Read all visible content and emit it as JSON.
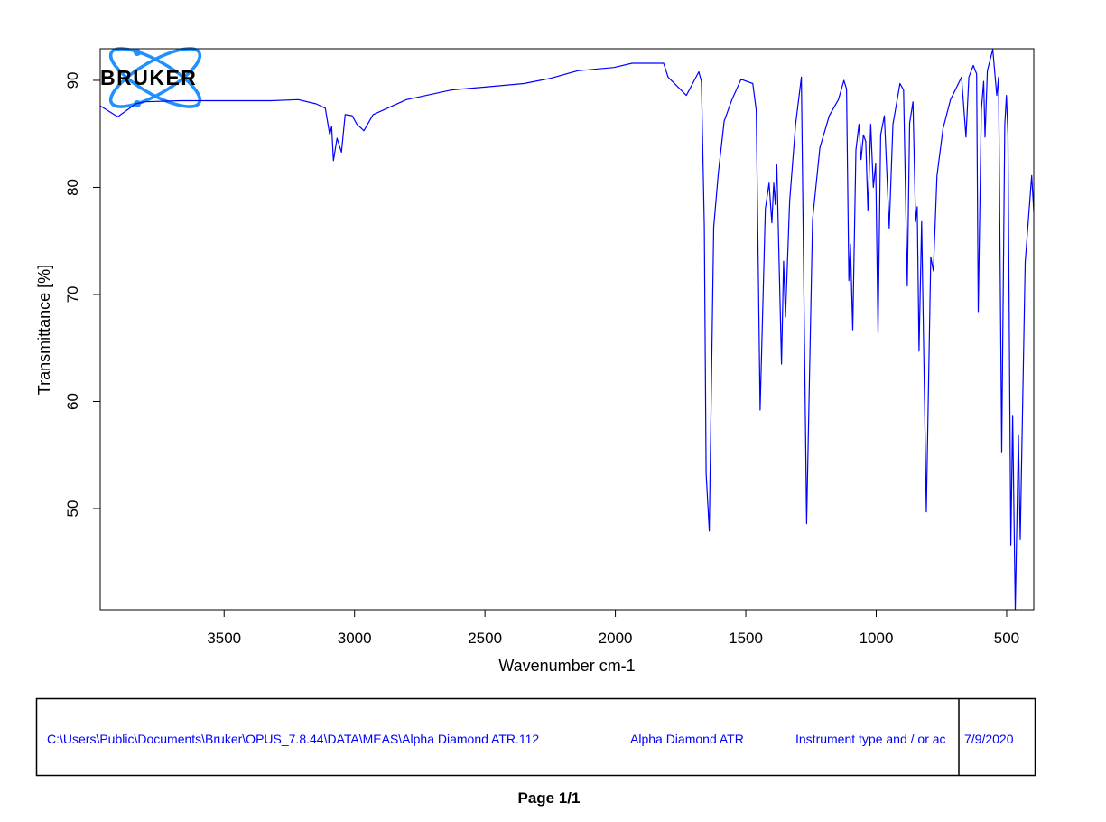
{
  "chart_data": {
    "type": "line",
    "title": "",
    "xlabel": "Wavenumber cm-1",
    "ylabel": "Transmittance [%]",
    "xlim": [
      3975,
      396
    ],
    "ylim": [
      40.55,
      92.95
    ],
    "x_reversed": true,
    "grid": false,
    "xticks": [
      3500,
      3000,
      2500,
      2000,
      1500,
      1000,
      500
    ],
    "yticks": [
      50,
      60,
      70,
      80,
      90
    ],
    "line_color": "#0000ff",
    "series": [
      {
        "points": [
          [
            3974,
            87.6
          ],
          [
            3908,
            86.6
          ],
          [
            3839,
            87.8
          ],
          [
            3804,
            88.0
          ],
          [
            3666,
            88.1
          ],
          [
            3493,
            88.1
          ],
          [
            3320,
            88.1
          ],
          [
            3216,
            88.2
          ],
          [
            3147,
            87.8
          ],
          [
            3112,
            87.4
          ],
          [
            3095,
            84.9
          ],
          [
            3088,
            85.7
          ],
          [
            3081,
            82.5
          ],
          [
            3067,
            84.6
          ],
          [
            3050,
            83.3
          ],
          [
            3036,
            86.8
          ],
          [
            3009,
            86.7
          ],
          [
            2991,
            85.9
          ],
          [
            2964,
            85.3
          ],
          [
            2929,
            86.8
          ],
          [
            2801,
            88.2
          ],
          [
            2628,
            89.1
          ],
          [
            2490,
            89.4
          ],
          [
            2351,
            89.7
          ],
          [
            2247,
            90.2
          ],
          [
            2144,
            90.9
          ],
          [
            2005,
            91.2
          ],
          [
            1936,
            91.6
          ],
          [
            1815,
            91.6
          ],
          [
            1798,
            90.3
          ],
          [
            1728,
            88.6
          ],
          [
            1680,
            90.8
          ],
          [
            1670,
            89.9
          ],
          [
            1659,
            76.3
          ],
          [
            1652,
            53.3
          ],
          [
            1640,
            47.9
          ],
          [
            1623,
            76.3
          ],
          [
            1605,
            81.4
          ],
          [
            1583,
            86.2
          ],
          [
            1553,
            88.2
          ],
          [
            1518,
            90.1
          ],
          [
            1473,
            89.7
          ],
          [
            1460,
            87.2
          ],
          [
            1445,
            59.2
          ],
          [
            1425,
            78.0
          ],
          [
            1411,
            80.4
          ],
          [
            1400,
            76.7
          ],
          [
            1393,
            80.4
          ],
          [
            1387,
            78.4
          ],
          [
            1381,
            82.1
          ],
          [
            1363,
            63.5
          ],
          [
            1355,
            73.1
          ],
          [
            1348,
            67.9
          ],
          [
            1332,
            78.7
          ],
          [
            1309,
            85.9
          ],
          [
            1287,
            90.3
          ],
          [
            1267,
            48.6
          ],
          [
            1244,
            77.0
          ],
          [
            1216,
            83.7
          ],
          [
            1180,
            86.7
          ],
          [
            1145,
            88.2
          ],
          [
            1124,
            90.0
          ],
          [
            1114,
            89.2
          ],
          [
            1105,
            71.3
          ],
          [
            1099,
            74.7
          ],
          [
            1090,
            66.7
          ],
          [
            1078,
            83.5
          ],
          [
            1066,
            85.9
          ],
          [
            1058,
            82.6
          ],
          [
            1049,
            84.9
          ],
          [
            1040,
            84.3
          ],
          [
            1032,
            77.8
          ],
          [
            1021,
            85.9
          ],
          [
            1011,
            80.0
          ],
          [
            1002,
            82.2
          ],
          [
            993,
            66.4
          ],
          [
            983,
            84.9
          ],
          [
            969,
            86.7
          ],
          [
            950,
            76.2
          ],
          [
            936,
            85.9
          ],
          [
            909,
            89.7
          ],
          [
            895,
            89.1
          ],
          [
            881,
            70.8
          ],
          [
            872,
            86.0
          ],
          [
            859,
            88.0
          ],
          [
            849,
            76.8
          ],
          [
            843,
            78.2
          ],
          [
            836,
            64.7
          ],
          [
            826,
            76.8
          ],
          [
            808,
            49.7
          ],
          [
            791,
            73.5
          ],
          [
            781,
            72.2
          ],
          [
            767,
            81.1
          ],
          [
            744,
            85.5
          ],
          [
            715,
            88.2
          ],
          [
            673,
            90.3
          ],
          [
            656,
            84.7
          ],
          [
            645,
            90.3
          ],
          [
            628,
            91.4
          ],
          [
            615,
            90.6
          ],
          [
            609,
            68.4
          ],
          [
            597,
            87.2
          ],
          [
            588,
            89.9
          ],
          [
            583,
            84.7
          ],
          [
            574,
            90.9
          ],
          [
            553,
            92.9
          ],
          [
            538,
            88.6
          ],
          [
            531,
            90.3
          ],
          [
            519,
            55.3
          ],
          [
            507,
            85.9
          ],
          [
            501,
            88.6
          ],
          [
            495,
            84.9
          ],
          [
            484,
            46.6
          ],
          [
            477,
            58.7
          ],
          [
            467,
            40.5
          ],
          [
            455,
            56.8
          ],
          [
            448,
            47.1
          ],
          [
            429,
            73.0
          ],
          [
            404,
            81.1
          ],
          [
            396,
            77.7
          ]
        ]
      }
    ]
  },
  "logo": {
    "text": "BRUKER",
    "color": "#1e90ff"
  },
  "footer": {
    "file_path": "C:\\Users\\Public\\Documents\\Bruker\\OPUS_7.8.44\\DATA\\MEAS\\Alpha Diamond ATR.112",
    "sample_name": "Alpha Diamond ATR",
    "instrument": "Instrument type and / or ac",
    "date": "7/9/2020"
  },
  "page_label": "Page 1/1"
}
